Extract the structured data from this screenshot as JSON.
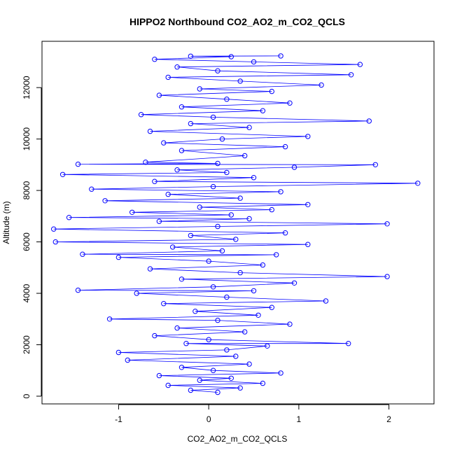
{
  "chart_data": {
    "type": "scatter",
    "title": "HIPPO2 Northbound CO2_AO2_m_CO2_QCLS",
    "xlabel": "CO2_AO2_m_CO2_QCLS",
    "ylabel": "Altitude (m)",
    "xlim": [
      -1.85,
      2.5
    ],
    "ylim": [
      -300,
      13800
    ],
    "x_ticks": [
      -1,
      0,
      1,
      2
    ],
    "x_tick_labels": [
      "-1",
      "0",
      "1",
      "2"
    ],
    "y_ticks": [
      0,
      2000,
      4000,
      6000,
      8000,
      10000,
      12000
    ],
    "y_tick_labels": [
      "0",
      "2000",
      "4000",
      "6000",
      "8000",
      "10000",
      "12000"
    ],
    "grid": false,
    "legend": "none",
    "series": [
      {
        "marker": "open-circle",
        "line": true,
        "color": "#0000ff",
        "points": [
          [
            0.1,
            150
          ],
          [
            -0.2,
            230
          ],
          [
            0.35,
            320
          ],
          [
            -0.45,
            420
          ],
          [
            0.6,
            500
          ],
          [
            -0.1,
            620
          ],
          [
            0.25,
            700
          ],
          [
            -0.55,
            800
          ],
          [
            0.8,
            900
          ],
          [
            0.05,
            1000
          ],
          [
            -0.3,
            1120
          ],
          [
            0.45,
            1250
          ],
          [
            -0.9,
            1400
          ],
          [
            0.3,
            1550
          ],
          [
            -1.0,
            1700
          ],
          [
            0.2,
            1800
          ],
          [
            0.65,
            1950
          ],
          [
            -0.25,
            2050
          ],
          [
            1.55,
            2050
          ],
          [
            0.0,
            2200
          ],
          [
            -0.6,
            2350
          ],
          [
            0.4,
            2500
          ],
          [
            -0.35,
            2650
          ],
          [
            0.9,
            2800
          ],
          [
            0.1,
            2950
          ],
          [
            -1.1,
            3000
          ],
          [
            0.55,
            3150
          ],
          [
            -0.15,
            3300
          ],
          [
            0.7,
            3450
          ],
          [
            -0.5,
            3600
          ],
          [
            1.3,
            3700
          ],
          [
            0.2,
            3850
          ],
          [
            -0.8,
            4000
          ],
          [
            0.5,
            4100
          ],
          [
            -1.45,
            4120
          ],
          [
            0.05,
            4250
          ],
          [
            0.95,
            4400
          ],
          [
            -0.3,
            4550
          ],
          [
            1.98,
            4650
          ],
          [
            0.35,
            4800
          ],
          [
            -0.65,
            4950
          ],
          [
            0.6,
            5100
          ],
          [
            0.0,
            5250
          ],
          [
            -1.0,
            5400
          ],
          [
            0.75,
            5500
          ],
          [
            -1.4,
            5520
          ],
          [
            0.15,
            5650
          ],
          [
            -0.4,
            5800
          ],
          [
            1.1,
            5900
          ],
          [
            -1.7,
            6000
          ],
          [
            0.3,
            6100
          ],
          [
            -0.2,
            6250
          ],
          [
            0.85,
            6350
          ],
          [
            -1.72,
            6500
          ],
          [
            0.1,
            6600
          ],
          [
            1.98,
            6700
          ],
          [
            -0.55,
            6800
          ],
          [
            0.45,
            6900
          ],
          [
            -1.55,
            6950
          ],
          [
            0.25,
            7050
          ],
          [
            -0.85,
            7150
          ],
          [
            0.7,
            7250
          ],
          [
            -0.1,
            7350
          ],
          [
            1.1,
            7450
          ],
          [
            -1.15,
            7600
          ],
          [
            0.35,
            7700
          ],
          [
            -0.45,
            7850
          ],
          [
            0.8,
            7950
          ],
          [
            -1.3,
            8050
          ],
          [
            0.05,
            8150
          ],
          [
            2.32,
            8280
          ],
          [
            -0.6,
            8350
          ],
          [
            0.5,
            8500
          ],
          [
            -1.62,
            8620
          ],
          [
            0.2,
            8700
          ],
          [
            -0.35,
            8800
          ],
          [
            0.95,
            8900
          ],
          [
            1.85,
            9000
          ],
          [
            -1.45,
            9020
          ],
          [
            0.1,
            9050
          ],
          [
            -0.7,
            9100
          ],
          [
            0.4,
            9350
          ],
          [
            -0.3,
            9550
          ],
          [
            0.85,
            9700
          ],
          [
            -0.5,
            9850
          ],
          [
            0.15,
            10000
          ],
          [
            1.1,
            10100
          ],
          [
            -0.65,
            10300
          ],
          [
            0.45,
            10450
          ],
          [
            -0.2,
            10600
          ],
          [
            1.78,
            10700
          ],
          [
            0.05,
            10850
          ],
          [
            -0.75,
            10950
          ],
          [
            0.6,
            11100
          ],
          [
            -0.3,
            11250
          ],
          [
            0.9,
            11400
          ],
          [
            0.2,
            11550
          ],
          [
            -0.55,
            11700
          ],
          [
            0.7,
            11850
          ],
          [
            -0.1,
            11950
          ],
          [
            1.25,
            12100
          ],
          [
            0.35,
            12250
          ],
          [
            -0.45,
            12400
          ],
          [
            1.58,
            12500
          ],
          [
            0.1,
            12650
          ],
          [
            -0.35,
            12800
          ],
          [
            1.68,
            12900
          ],
          [
            0.5,
            13000
          ],
          [
            -0.6,
            13100
          ],
          [
            0.25,
            13200
          ],
          [
            -0.2,
            13220
          ],
          [
            0.8,
            13230
          ]
        ]
      }
    ]
  }
}
